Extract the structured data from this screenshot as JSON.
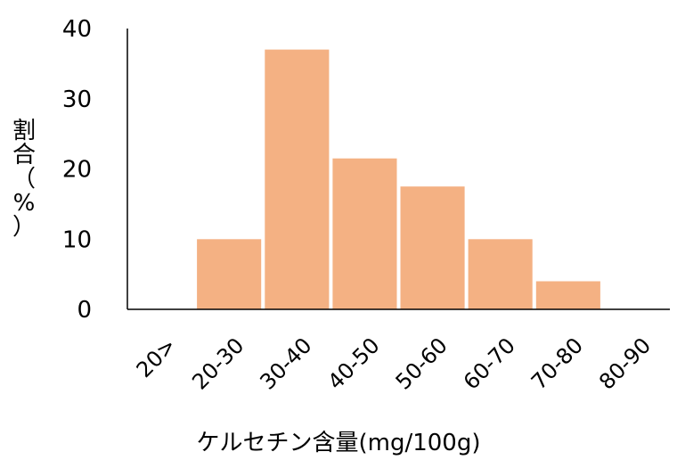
{
  "chart_data": {
    "type": "bar",
    "categories": [
      "20>",
      "20-30",
      "30-40",
      "40-50",
      "50-60",
      "60-70",
      "70-80",
      "80-90"
    ],
    "values": [
      0,
      10,
      37,
      21.5,
      17.5,
      10,
      4,
      0
    ],
    "title": "",
    "xlabel": "ケルセチン含量(mg/100g)",
    "ylabel": "割合（%）",
    "ylabel_chars": [
      "割",
      "合",
      "（",
      "%",
      "）"
    ],
    "ylim": [
      0,
      40
    ],
    "yticks": [
      "0",
      "10",
      "20",
      "30",
      "40"
    ],
    "grid": false,
    "bar_color": "#f4b183"
  }
}
